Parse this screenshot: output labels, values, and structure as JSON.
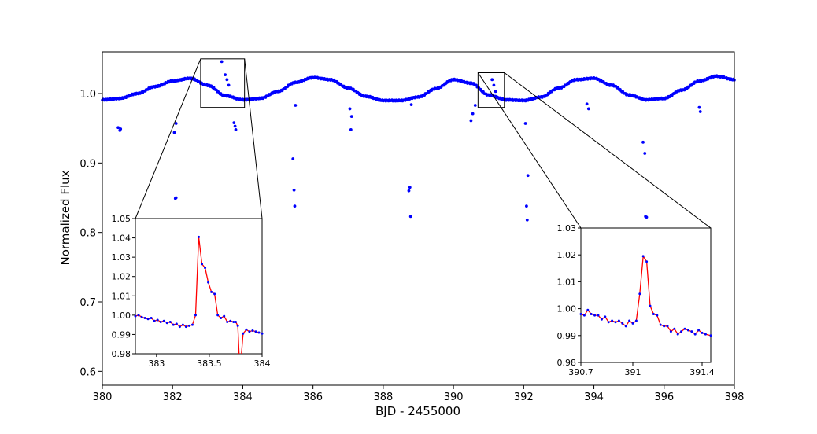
{
  "chart_data": {
    "type": "scatter",
    "xlabel": "BJD - 2455000",
    "ylabel": "Normalized Flux",
    "xlim": [
      380,
      398
    ],
    "ylim": [
      0.58,
      1.06
    ],
    "xticks": [
      380,
      382,
      384,
      386,
      388,
      390,
      392,
      394,
      396,
      398
    ],
    "xtick_labels": [
      "380",
      "382",
      "384",
      "386",
      "388",
      "390",
      "392",
      "394",
      "396",
      "398"
    ],
    "yticks": [
      0.6,
      0.7,
      0.8,
      0.9,
      1.0
    ],
    "ytick_labels": [
      "0.6",
      "0.7",
      "0.8",
      "0.9",
      "1.0"
    ],
    "grid": false,
    "marker_color": "#0000ff",
    "line_color": "#ff0000",
    "baseline": {
      "x": [
        380.0,
        380.5,
        381.0,
        381.5,
        382.0,
        382.5,
        383.0,
        383.5,
        384.0,
        384.5,
        385.0,
        385.5,
        386.0,
        386.5,
        387.0,
        387.5,
        388.0,
        388.5,
        389.0,
        389.5,
        390.0,
        390.5,
        391.0,
        391.5,
        392.0,
        392.5,
        393.0,
        393.5,
        394.0,
        394.5,
        395.0,
        395.5,
        396.0,
        396.5,
        397.0,
        397.5,
        398.0
      ],
      "y": [
        0.991,
        0.993,
        1.0,
        1.01,
        1.018,
        1.022,
        1.012,
        0.997,
        0.991,
        0.993,
        1.003,
        1.016,
        1.023,
        1.02,
        1.008,
        0.996,
        0.99,
        0.99,
        0.995,
        1.007,
        1.02,
        1.015,
        0.998,
        0.991,
        0.99,
        0.995,
        1.008,
        1.02,
        1.022,
        1.012,
        0.998,
        0.991,
        0.993,
        1.005,
        1.018,
        1.025,
        1.02
      ]
    },
    "outliers": [
      {
        "x": 380.45,
        "y": 0.951
      },
      {
        "x": 380.5,
        "y": 0.947
      },
      {
        "x": 380.52,
        "y": 0.949
      },
      {
        "x": 382.05,
        "y": 0.944
      },
      {
        "x": 382.1,
        "y": 0.957
      },
      {
        "x": 382.08,
        "y": 0.849
      },
      {
        "x": 382.1,
        "y": 0.85
      },
      {
        "x": 383.4,
        "y": 1.046
      },
      {
        "x": 383.5,
        "y": 1.027
      },
      {
        "x": 383.55,
        "y": 1.02
      },
      {
        "x": 383.6,
        "y": 1.012
      },
      {
        "x": 383.75,
        "y": 0.958
      },
      {
        "x": 383.78,
        "y": 0.953
      },
      {
        "x": 383.8,
        "y": 0.948
      },
      {
        "x": 385.43,
        "y": 0.906
      },
      {
        "x": 385.46,
        "y": 0.861
      },
      {
        "x": 385.48,
        "y": 0.838
      },
      {
        "x": 385.5,
        "y": 0.983
      },
      {
        "x": 387.05,
        "y": 0.978
      },
      {
        "x": 387.08,
        "y": 0.948
      },
      {
        "x": 387.1,
        "y": 0.967
      },
      {
        "x": 388.73,
        "y": 0.86
      },
      {
        "x": 388.76,
        "y": 0.865
      },
      {
        "x": 388.78,
        "y": 0.823
      },
      {
        "x": 388.8,
        "y": 0.984
      },
      {
        "x": 390.5,
        "y": 0.961
      },
      {
        "x": 390.55,
        "y": 0.971
      },
      {
        "x": 390.62,
        "y": 0.983
      },
      {
        "x": 391.1,
        "y": 1.02
      },
      {
        "x": 391.15,
        "y": 1.012
      },
      {
        "x": 391.2,
        "y": 1.003
      },
      {
        "x": 392.05,
        "y": 0.957
      },
      {
        "x": 392.08,
        "y": 0.838
      },
      {
        "x": 392.1,
        "y": 0.818
      },
      {
        "x": 392.12,
        "y": 0.882
      },
      {
        "x": 393.8,
        "y": 0.985
      },
      {
        "x": 393.85,
        "y": 0.978
      },
      {
        "x": 395.4,
        "y": 0.93
      },
      {
        "x": 395.45,
        "y": 0.914
      },
      {
        "x": 395.47,
        "y": 0.823
      },
      {
        "x": 395.5,
        "y": 0.822
      },
      {
        "x": 397.0,
        "y": 0.98
      },
      {
        "x": 397.03,
        "y": 0.974
      }
    ],
    "zoom_boxes": [
      {
        "xlim": [
          382.8,
          384.05
        ],
        "ylim": [
          0.98,
          1.05
        ]
      },
      {
        "xlim": [
          390.7,
          391.45
        ],
        "ylim": [
          0.98,
          1.03
        ]
      }
    ],
    "insets": [
      {
        "xlim": [
          382.8,
          384.0
        ],
        "ylim": [
          0.98,
          1.05
        ],
        "xticks": [
          383,
          383.5,
          384
        ],
        "xtick_labels": [
          "383",
          "383.5",
          "384"
        ],
        "yticks": [
          0.98,
          0.99,
          1.0,
          1.01,
          1.02,
          1.03,
          1.04,
          1.05
        ],
        "ytick_labels": [
          "0.98",
          "0.99",
          "1.00",
          "1.01",
          "1.02",
          "1.03",
          "1.04",
          "1.05"
        ],
        "x": [
          382.8,
          382.83,
          382.86,
          382.89,
          382.92,
          382.95,
          382.98,
          383.01,
          383.04,
          383.07,
          383.1,
          383.13,
          383.16,
          383.19,
          383.22,
          383.25,
          383.28,
          383.31,
          383.34,
          383.37,
          383.4,
          383.43,
          383.46,
          383.49,
          383.52,
          383.55,
          383.58,
          383.61,
          383.64,
          383.67,
          383.7,
          383.73,
          383.75,
          383.77,
          383.79,
          383.82,
          383.85,
          383.88,
          383.91,
          383.94,
          383.97,
          384.0
        ],
        "y": [
          0.9995,
          1.0,
          0.999,
          0.9985,
          0.998,
          0.9985,
          0.997,
          0.9975,
          0.9965,
          0.997,
          0.996,
          0.9965,
          0.995,
          0.9955,
          0.994,
          0.995,
          0.994,
          0.9945,
          0.995,
          1.0,
          1.0405,
          1.0265,
          1.0245,
          1.017,
          1.012,
          1.011,
          1.0,
          0.9985,
          0.9995,
          0.9965,
          0.997,
          0.9965,
          0.9965,
          0.9945,
          0.97,
          0.9905,
          0.9925,
          0.9915,
          0.992,
          0.9915,
          0.991,
          0.9905
        ]
      },
      {
        "xlim": [
          390.7,
          391.45
        ],
        "ylim": [
          0.98,
          1.03
        ],
        "xticks": [
          390.7,
          391.0,
          391.4
        ],
        "xtick_labels": [
          "390.7",
          "391",
          "391.4"
        ],
        "yticks": [
          0.98,
          0.99,
          1.0,
          1.01,
          1.02,
          1.03
        ],
        "ytick_labels": [
          "0.98",
          "0.99",
          "1.00",
          "1.01",
          "1.02",
          "1.03"
        ],
        "x": [
          390.7,
          390.72,
          390.74,
          390.76,
          390.78,
          390.8,
          390.82,
          390.84,
          390.86,
          390.88,
          390.9,
          390.92,
          390.94,
          390.96,
          390.98,
          391.0,
          391.02,
          391.04,
          391.06,
          391.08,
          391.1,
          391.12,
          391.14,
          391.16,
          391.18,
          391.2,
          391.22,
          391.24,
          391.26,
          391.28,
          391.3,
          391.32,
          391.34,
          391.36,
          391.38,
          391.4,
          391.42,
          391.45
        ],
        "y": [
          0.998,
          0.9975,
          0.9995,
          0.998,
          0.9975,
          0.9975,
          0.996,
          0.997,
          0.995,
          0.9955,
          0.995,
          0.9955,
          0.9945,
          0.9935,
          0.9955,
          0.9945,
          0.9955,
          1.0055,
          1.0195,
          1.0175,
          1.001,
          0.998,
          0.9975,
          0.994,
          0.9935,
          0.9935,
          0.9915,
          0.9925,
          0.9905,
          0.9915,
          0.9925,
          0.992,
          0.9915,
          0.9905,
          0.992,
          0.991,
          0.9905,
          0.99
        ]
      }
    ]
  }
}
